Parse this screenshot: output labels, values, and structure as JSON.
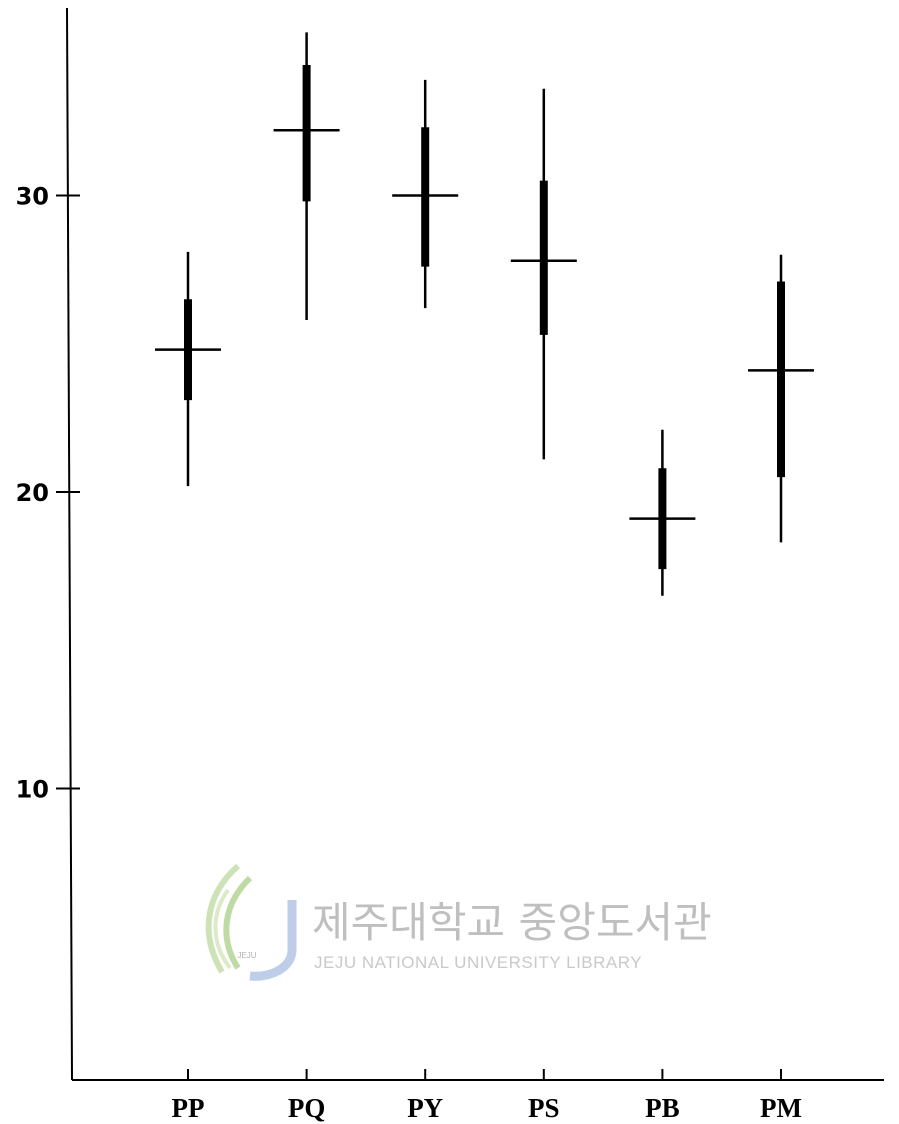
{
  "chart_data": {
    "type": "box",
    "categories": [
      "PP",
      "PQ",
      "PY",
      "PS",
      "PB",
      "PM"
    ],
    "series": [
      {
        "min": [
          20.2,
          25.8,
          26.2,
          21.1,
          16.5,
          18.3
        ],
        "q1": [
          23.1,
          29.8,
          27.6,
          25.3,
          17.4,
          20.5
        ],
        "median": [
          24.8,
          32.2,
          30.0,
          27.8,
          19.1,
          24.1
        ],
        "q3": [
          26.5,
          34.4,
          32.3,
          30.5,
          20.8,
          27.1
        ],
        "max": [
          28.1,
          35.5,
          33.9,
          33.6,
          22.1,
          28.0
        ]
      }
    ],
    "yticks": [
      10,
      20,
      30
    ],
    "ylim": [
      0,
      36
    ],
    "grid": false,
    "title": "",
    "xlabel": "",
    "ylabel": ""
  },
  "watermark": {
    "korean": "제주대학교 중앙도서관",
    "english": "JEJU NATIONAL UNIVERSITY  LIBRARY",
    "logo_text": "JEJU"
  }
}
